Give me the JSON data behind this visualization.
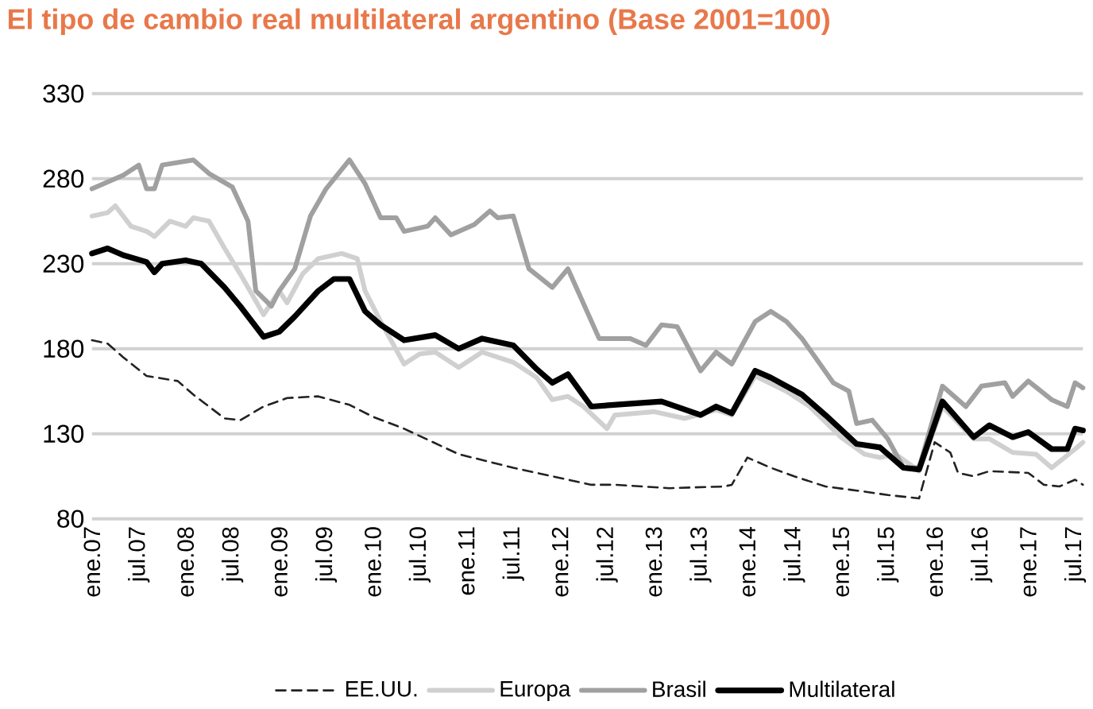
{
  "chart_data": {
    "type": "line",
    "title": "El tipo de cambio real multilateral argentino (Base 2001=100)",
    "xlim": [
      "2007-01",
      "2017-08"
    ],
    "xticks": [
      {
        "value": "2007-01",
        "label": "ene.07"
      },
      {
        "value": "2007-07",
        "label": "jul.07"
      },
      {
        "value": "2008-01",
        "label": "ene.08"
      },
      {
        "value": "2008-07",
        "label": "jul.08"
      },
      {
        "value": "2009-01",
        "label": "ene.09"
      },
      {
        "value": "2009-07",
        "label": "jul.09"
      },
      {
        "value": "2010-01",
        "label": "ene.10"
      },
      {
        "value": "2010-07",
        "label": "jul.10"
      },
      {
        "value": "2011-01",
        "label": "ene.11"
      },
      {
        "value": "2011-07",
        "label": "jul.11"
      },
      {
        "value": "2012-01",
        "label": "ene.12"
      },
      {
        "value": "2012-07",
        "label": "jul.12"
      },
      {
        "value": "2013-01",
        "label": "ene.13"
      },
      {
        "value": "2013-07",
        "label": "jul.13"
      },
      {
        "value": "2014-01",
        "label": "ene.14"
      },
      {
        "value": "2014-07",
        "label": "jul.14"
      },
      {
        "value": "2015-01",
        "label": "ene.15"
      },
      {
        "value": "2015-07",
        "label": "jul.15"
      },
      {
        "value": "2016-01",
        "label": "ene.16"
      },
      {
        "value": "2016-07",
        "label": "jul.16"
      },
      {
        "value": "2017-01",
        "label": "ene.17"
      },
      {
        "value": "2017-07",
        "label": "jul.17"
      }
    ],
    "ylim": [
      80,
      330
    ],
    "yticks": [
      80,
      130,
      180,
      230,
      280,
      330
    ],
    "grid": "y",
    "legend": "bottom",
    "series": [
      {
        "name": "EE.UU.",
        "color": "#222222",
        "line_style": "dashed",
        "x": [
          "2007-01",
          "2007-03",
          "2007-05",
          "2007-08",
          "2007-12",
          "2008-02",
          "2008-06",
          "2008-08",
          "2008-11",
          "2009-02",
          "2009-06",
          "2009-10",
          "2010-01",
          "2010-05",
          "2010-12",
          "2011-07",
          "2012-02",
          "2012-05",
          "2012-08",
          "2013-03",
          "2013-10",
          "2013-11",
          "2014-01",
          "2014-04",
          "2014-07",
          "2014-11",
          "2015-04",
          "2015-07",
          "2015-11",
          "2016-01",
          "2016-03",
          "2016-04",
          "2016-06",
          "2016-08",
          "2017-01",
          "2017-03",
          "2017-05",
          "2017-07",
          "2017-08"
        ],
        "values": [
          185,
          183,
          175,
          164,
          161,
          153,
          139,
          138,
          146,
          151,
          152,
          147,
          140,
          133,
          118,
          110,
          103,
          100,
          100,
          98,
          99,
          100,
          116,
          110,
          105,
          99,
          96,
          94,
          92,
          125,
          119,
          107,
          105,
          108,
          107,
          100,
          99,
          103,
          100
        ]
      },
      {
        "name": "Europa",
        "color": "#d0d0d0",
        "line_style": "solid",
        "x": [
          "2007-01",
          "2007-03",
          "2007-04",
          "2007-06",
          "2007-08",
          "2007-09",
          "2007-11",
          "2008-01",
          "2008-02",
          "2008-04",
          "2008-06",
          "2008-08",
          "2008-10",
          "2008-11",
          "2009-01",
          "2009-02",
          "2009-04",
          "2009-06",
          "2009-09",
          "2009-11",
          "2009-12",
          "2010-02",
          "2010-05",
          "2010-07",
          "2010-09",
          "2010-12",
          "2011-03",
          "2011-07",
          "2011-10",
          "2011-12",
          "2012-02",
          "2012-04",
          "2012-07",
          "2012-08",
          "2013-01",
          "2013-05",
          "2013-09",
          "2013-11",
          "2014-02",
          "2014-06",
          "2014-09",
          "2015-01",
          "2015-04",
          "2015-06",
          "2015-08",
          "2015-11",
          "2016-02",
          "2016-06",
          "2016-08",
          "2016-11",
          "2017-02",
          "2017-04",
          "2017-07",
          "2017-08"
        ],
        "values": [
          258,
          260,
          264,
          252,
          249,
          246,
          255,
          252,
          257,
          255,
          239,
          224,
          208,
          200,
          214,
          207,
          224,
          233,
          236,
          233,
          214,
          196,
          171,
          177,
          178,
          169,
          178,
          172,
          163,
          150,
          152,
          146,
          133,
          141,
          143,
          139,
          144,
          141,
          164,
          155,
          146,
          128,
          118,
          116,
          118,
          108,
          146,
          127,
          127,
          119,
          118,
          110,
          121,
          125
        ]
      },
      {
        "name": "Brasil",
        "color": "#a0a0a0",
        "line_style": "solid",
        "x": [
          "2007-01",
          "2007-03",
          "2007-05",
          "2007-07",
          "2007-08",
          "2007-09",
          "2007-10",
          "2008-02",
          "2008-04",
          "2008-07",
          "2008-09",
          "2008-10",
          "2008-12",
          "2009-01",
          "2009-03",
          "2009-05",
          "2009-07",
          "2009-10",
          "2009-12",
          "2010-02",
          "2010-04",
          "2010-05",
          "2010-08",
          "2010-09",
          "2010-11",
          "2011-02",
          "2011-04",
          "2011-05",
          "2011-07",
          "2011-09",
          "2011-12",
          "2012-02",
          "2012-06",
          "2012-10",
          "2012-12",
          "2013-02",
          "2013-04",
          "2013-07",
          "2013-09",
          "2013-11",
          "2014-02",
          "2014-04",
          "2014-06",
          "2014-08",
          "2014-12",
          "2015-02",
          "2015-03",
          "2015-05",
          "2015-07",
          "2015-09",
          "2015-11",
          "2016-02",
          "2016-05",
          "2016-07",
          "2016-10",
          "2016-11",
          "2017-01",
          "2017-04",
          "2017-06",
          "2017-07",
          "2017-08"
        ],
        "values": [
          274,
          278,
          282,
          288,
          274,
          274,
          288,
          291,
          283,
          275,
          255,
          214,
          205,
          214,
          227,
          258,
          274,
          291,
          277,
          257,
          257,
          249,
          252,
          257,
          247,
          253,
          261,
          257,
          258,
          227,
          216,
          227,
          186,
          186,
          182,
          194,
          193,
          167,
          178,
          171,
          196,
          202,
          196,
          186,
          160,
          155,
          136,
          138,
          127,
          110,
          110,
          158,
          146,
          158,
          160,
          152,
          161,
          150,
          146,
          160,
          157
        ]
      },
      {
        "name": "Multilateral",
        "color": "#000000",
        "line_style": "solid",
        "x": [
          "2007-01",
          "2007-03",
          "2007-05",
          "2007-08",
          "2007-09",
          "2007-10",
          "2008-01",
          "2008-03",
          "2008-06",
          "2008-08",
          "2008-11",
          "2009-01",
          "2009-03",
          "2009-06",
          "2009-08",
          "2009-10",
          "2009-12",
          "2010-02",
          "2010-05",
          "2010-09",
          "2010-12",
          "2011-03",
          "2011-07",
          "2011-10",
          "2011-12",
          "2012-02",
          "2012-05",
          "2012-08",
          "2013-02",
          "2013-07",
          "2013-09",
          "2013-11",
          "2014-02",
          "2014-04",
          "2014-08",
          "2014-11",
          "2015-03",
          "2015-06",
          "2015-09",
          "2015-11",
          "2016-02",
          "2016-06",
          "2016-08",
          "2016-11",
          "2017-01",
          "2017-04",
          "2017-06",
          "2017-07",
          "2017-08"
        ],
        "values": [
          236,
          239,
          235,
          231,
          225,
          230,
          232,
          230,
          216,
          205,
          187,
          190,
          199,
          214,
          221,
          221,
          202,
          194,
          185,
          188,
          180,
          186,
          182,
          168,
          160,
          165,
          146,
          147,
          149,
          141,
          146,
          142,
          167,
          163,
          153,
          141,
          124,
          122,
          110,
          109,
          149,
          128,
          135,
          128,
          131,
          121,
          121,
          133,
          132
        ]
      }
    ]
  }
}
